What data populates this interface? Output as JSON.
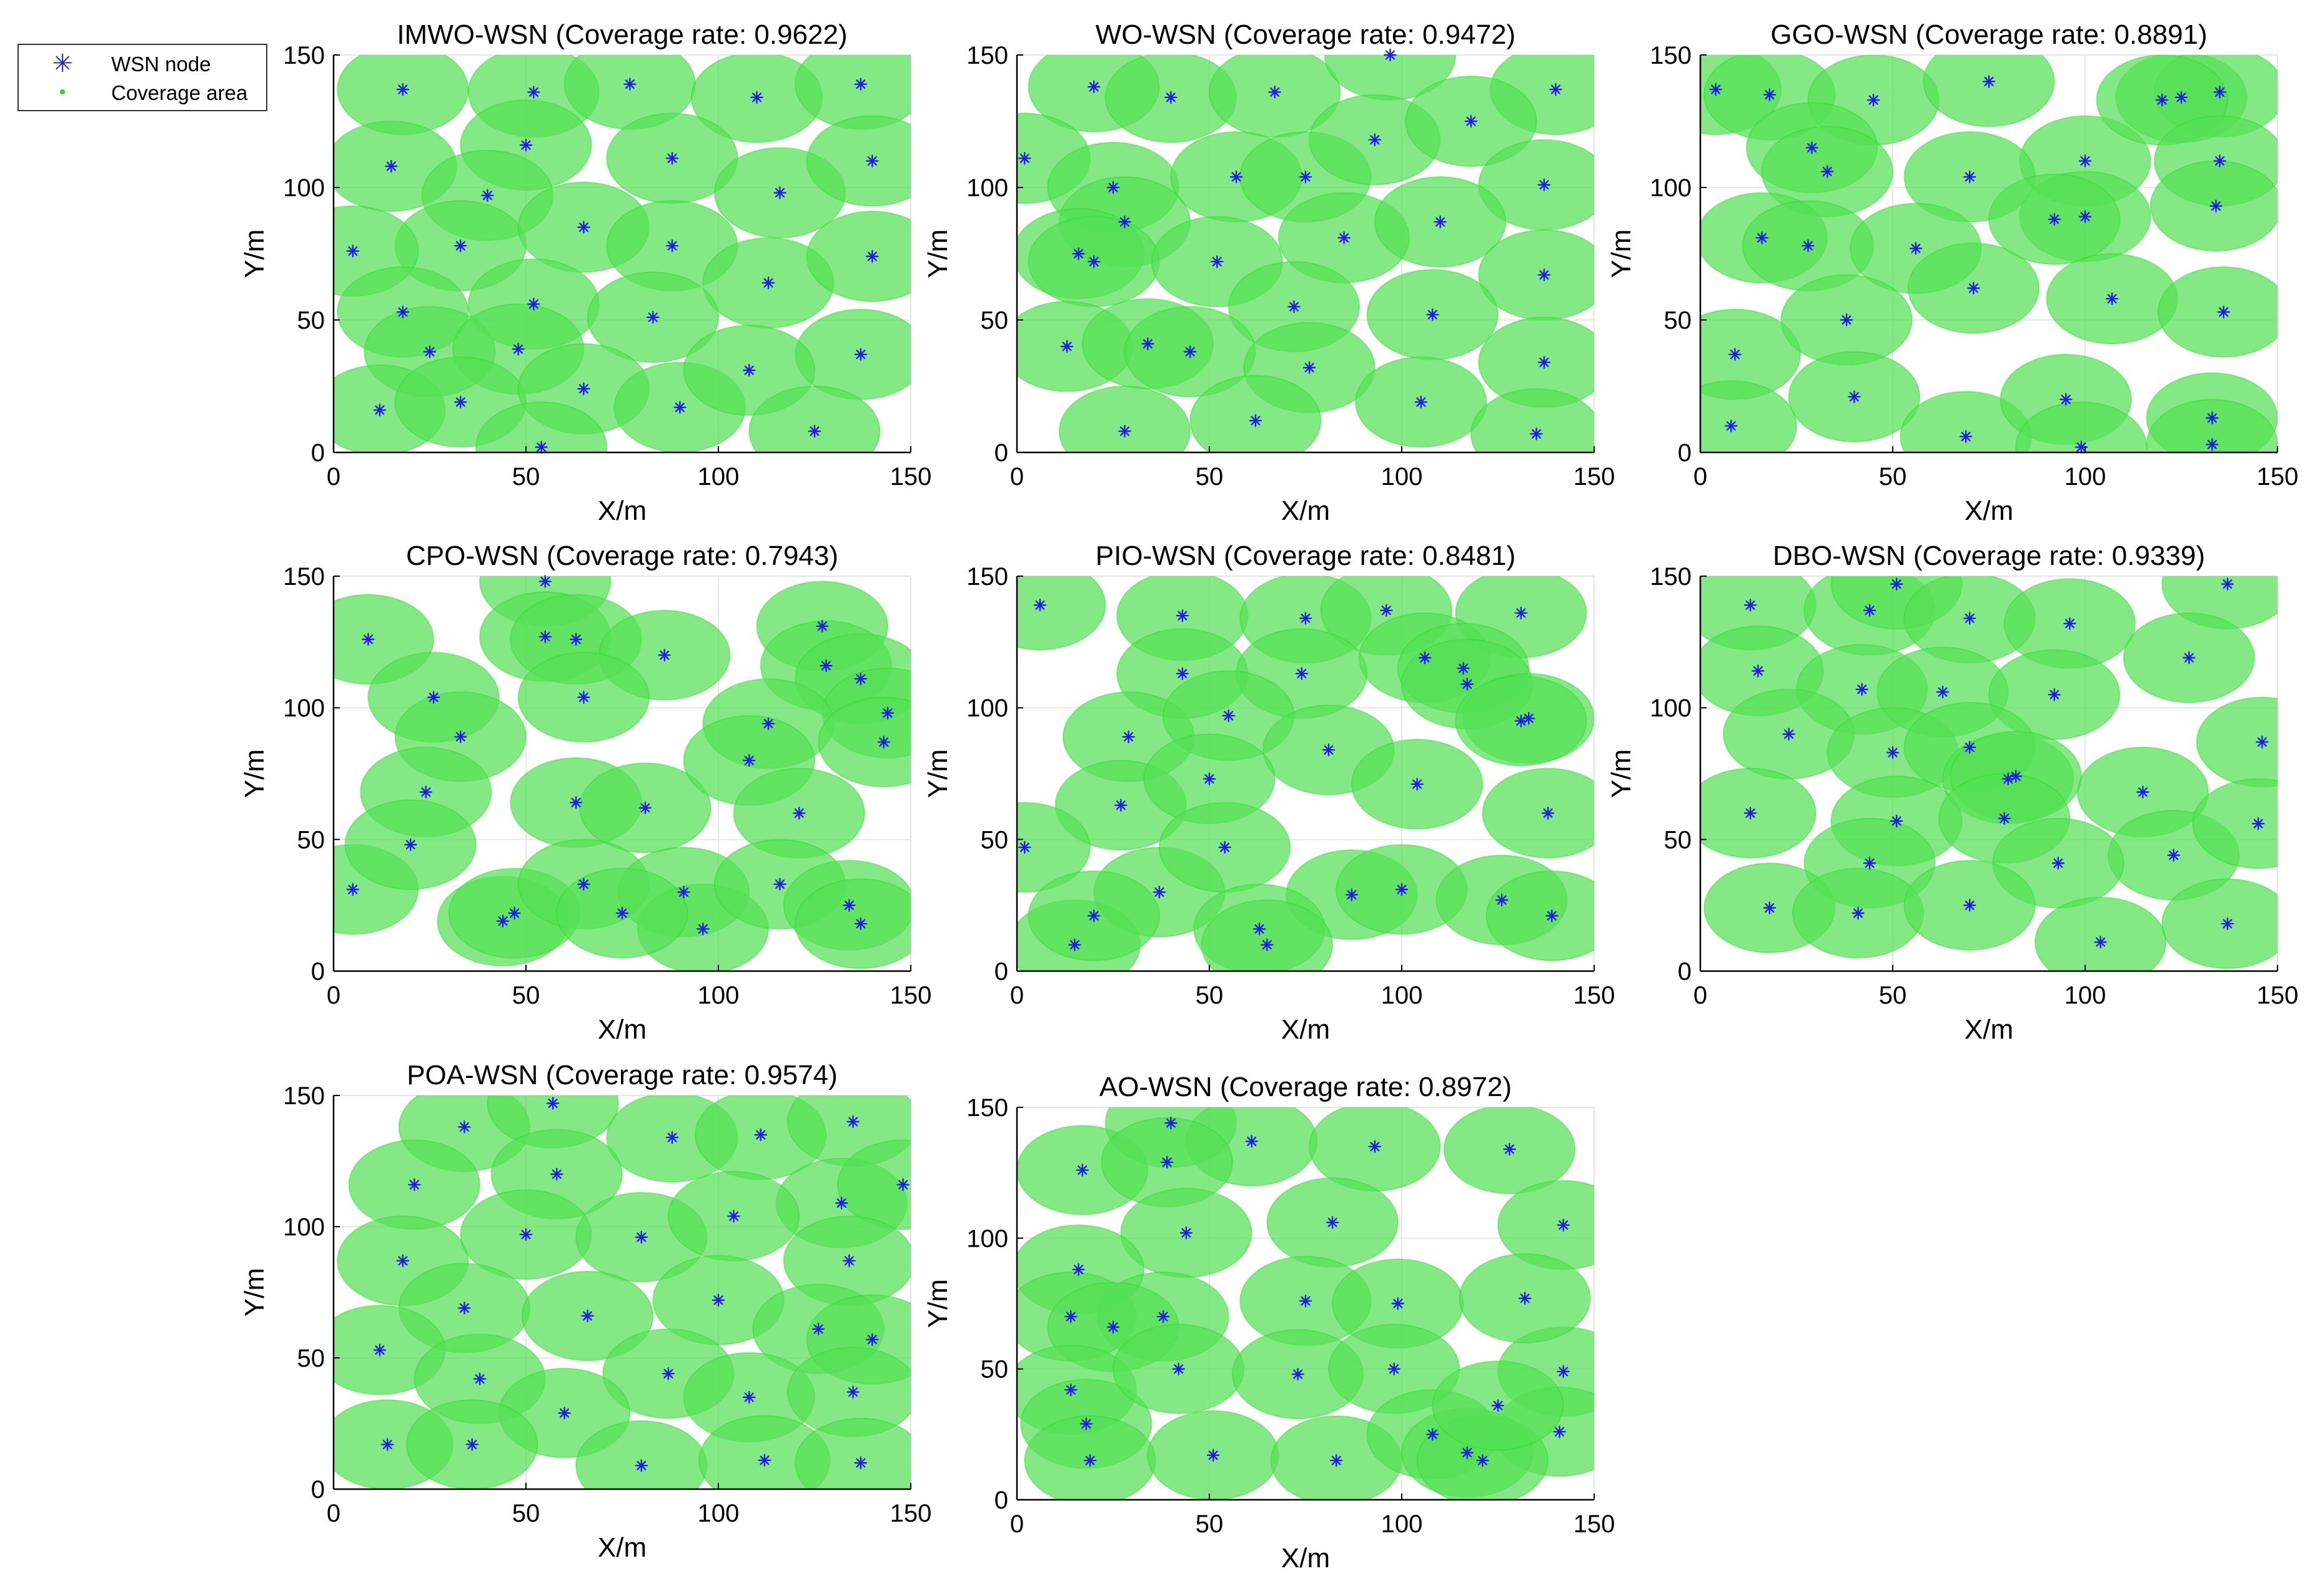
{
  "legend": {
    "node_label": "WSN node",
    "area_label": "Coverage area",
    "node_icon": "asterisk-marker-icon",
    "area_icon": "dot-marker-icon"
  },
  "colors": {
    "node": "#1e1ee6",
    "coverage": "#22dd22",
    "coverage_fill": "#55e055",
    "axis": "#000000",
    "grid": "#e6e6e6"
  },
  "chart_data": [
    {
      "type": "scatter",
      "title": "IMWO-WSN (Coverage rate: 0.9622)",
      "xlabel": "X/m",
      "ylabel": "Y/m",
      "xlim": [
        0,
        150
      ],
      "ylim": [
        0,
        150
      ],
      "xticks": [
        0,
        50,
        100,
        150
      ],
      "yticks": [
        0,
        50,
        100,
        150
      ],
      "grid": true,
      "sensing_radius": 17,
      "x": [
        18,
        52,
        77,
        110,
        137,
        15,
        50,
        40,
        88,
        116,
        140,
        33,
        65,
        88,
        113,
        5,
        18,
        52,
        83,
        140,
        25,
        48,
        137,
        12,
        33,
        65,
        90,
        108,
        125,
        54
      ],
      "y": [
        137,
        136,
        139,
        134,
        139,
        108,
        116,
        97,
        111,
        98,
        110,
        78,
        85,
        78,
        64,
        76,
        53,
        56,
        51,
        74,
        38,
        39,
        37,
        16,
        19,
        24,
        17,
        31,
        8,
        2
      ]
    },
    {
      "type": "scatter",
      "title": "WO-WSN (Coverage rate: 0.9472)",
      "xlabel": "X/m",
      "ylabel": "Y/m",
      "xlim": [
        0,
        150
      ],
      "ylim": [
        0,
        150
      ],
      "xticks": [
        0,
        50,
        100,
        150
      ],
      "yticks": [
        0,
        50,
        100,
        150
      ],
      "grid": true,
      "sensing_radius": 17,
      "x": [
        20,
        40,
        67,
        97,
        140,
        2,
        25,
        57,
        75,
        93,
        118,
        137,
        28,
        16,
        20,
        52,
        85,
        110,
        137,
        72,
        13,
        34,
        45,
        76,
        108,
        137,
        28,
        62,
        105,
        135
      ],
      "y": [
        138,
        134,
        136,
        150,
        137,
        111,
        100,
        104,
        104,
        118,
        125,
        101,
        87,
        75,
        72,
        72,
        81,
        87,
        67,
        55,
        40,
        41,
        38,
        32,
        52,
        34,
        8,
        12,
        19,
        7
      ]
    },
    {
      "type": "scatter",
      "title": "GGO-WSN (Coverage rate: 0.8891)",
      "xlabel": "X/m",
      "ylabel": "Y/m",
      "xlim": [
        0,
        150
      ],
      "ylim": [
        0,
        150
      ],
      "xticks": [
        0,
        50,
        100,
        150
      ],
      "yticks": [
        0,
        50,
        100,
        150
      ],
      "grid": true,
      "sensing_radius": 17,
      "x": [
        4,
        18,
        45,
        75,
        100,
        125,
        135,
        29,
        33,
        70,
        100,
        120,
        135,
        134,
        16,
        28,
        56,
        71,
        92,
        107,
        136,
        9,
        38,
        40,
        69,
        95,
        133,
        8,
        99,
        133
      ],
      "y": [
        137,
        135,
        133,
        140,
        110,
        134,
        136,
        115,
        106,
        104,
        89,
        133,
        110,
        93,
        81,
        78,
        77,
        62,
        88,
        58,
        53,
        37,
        50,
        21,
        6,
        20,
        13,
        10,
        2,
        3
      ]
    },
    {
      "type": "scatter",
      "title": "CPO-WSN (Coverage rate: 0.7943)",
      "xlabel": "X/m",
      "ylabel": "Y/m",
      "xlim": [
        0,
        150
      ],
      "ylim": [
        0,
        150
      ],
      "xticks": [
        0,
        50,
        100,
        150
      ],
      "yticks": [
        0,
        50,
        100,
        150
      ],
      "grid": true,
      "sensing_radius": 17,
      "x": [
        9,
        55,
        55,
        63,
        86,
        127,
        128,
        137,
        144,
        26,
        33,
        65,
        113,
        143,
        24,
        63,
        81,
        108,
        121,
        5,
        20,
        44,
        47,
        65,
        91,
        96,
        116,
        134,
        137,
        75
      ],
      "y": [
        126,
        148,
        127,
        126,
        120,
        131,
        116,
        111,
        98,
        104,
        89,
        104,
        94,
        87,
        68,
        64,
        62,
        80,
        60,
        31,
        48,
        19,
        22,
        33,
        30,
        16,
        33,
        25,
        18,
        22
      ]
    },
    {
      "type": "scatter",
      "title": "PIO-WSN (Coverage rate: 0.8481)",
      "xlabel": "X/m",
      "ylabel": "Y/m",
      "xlim": [
        0,
        150
      ],
      "ylim": [
        0,
        150
      ],
      "xticks": [
        0,
        50,
        100,
        150
      ],
      "yticks": [
        0,
        50,
        100,
        150
      ],
      "grid": true,
      "sensing_radius": 17,
      "x": [
        6,
        43,
        75,
        96,
        131,
        43,
        74,
        106,
        116,
        117,
        133,
        29,
        55,
        81,
        27,
        50,
        104,
        138,
        2,
        37,
        54,
        15,
        20,
        87,
        100,
        126,
        139,
        63,
        65,
        131
      ],
      "y": [
        139,
        135,
        134,
        137,
        136,
        113,
        113,
        119,
        115,
        109,
        96,
        89,
        97,
        84,
        63,
        73,
        71,
        60,
        47,
        30,
        47,
        10,
        21,
        29,
        31,
        27,
        21,
        16,
        10,
        95
      ]
    },
    {
      "type": "scatter",
      "title": "DBO-WSN (Coverage rate: 0.9339)",
      "xlabel": "X/m",
      "ylabel": "Y/m",
      "xlim": [
        0,
        150
      ],
      "ylim": [
        0,
        150
      ],
      "xticks": [
        0,
        50,
        100,
        150
      ],
      "yticks": [
        0,
        50,
        100,
        150
      ],
      "grid": true,
      "sensing_radius": 17,
      "x": [
        13,
        44,
        51,
        70,
        96,
        137,
        15,
        42,
        63,
        92,
        127,
        23,
        50,
        70,
        115,
        146,
        13,
        51,
        80,
        82,
        79,
        123,
        145,
        44,
        93,
        18,
        41,
        70,
        104,
        137
      ],
      "y": [
        139,
        137,
        147,
        134,
        132,
        147,
        114,
        107,
        106,
        105,
        119,
        90,
        83,
        85,
        68,
        87,
        60,
        57,
        73,
        74,
        58,
        44,
        56,
        41,
        41,
        24,
        22,
        25,
        11,
        18
      ]
    },
    {
      "type": "scatter",
      "title": "POA-WSN (Coverage rate: 0.9574)",
      "xlabel": "X/m",
      "ylabel": "Y/m",
      "xlim": [
        0,
        150
      ],
      "ylim": [
        0,
        150
      ],
      "xticks": [
        0,
        50,
        100,
        150
      ],
      "yticks": [
        0,
        50,
        100,
        150
      ],
      "grid": true,
      "sensing_radius": 17,
      "x": [
        34,
        57,
        88,
        111,
        135,
        21,
        58,
        132,
        148,
        18,
        50,
        80,
        104,
        134,
        34,
        66,
        100,
        126,
        140,
        12,
        38,
        87,
        108,
        135,
        60,
        14,
        36,
        80,
        112,
        137
      ],
      "y": [
        138,
        147,
        134,
        135,
        140,
        116,
        120,
        109,
        116,
        87,
        97,
        96,
        104,
        87,
        69,
        66,
        72,
        61,
        57,
        53,
        42,
        44,
        35,
        37,
        29,
        17,
        17,
        9,
        11,
        10
      ]
    },
    {
      "type": "scatter",
      "title": "AO-WSN (Coverage rate: 0.8972)",
      "xlabel": "X/m",
      "ylabel": "Y/m",
      "xlim": [
        0,
        150
      ],
      "ylim": [
        0,
        150
      ],
      "xticks": [
        0,
        50,
        100,
        150
      ],
      "yticks": [
        0,
        50,
        100,
        150
      ],
      "grid": true,
      "sensing_radius": 17,
      "x": [
        17,
        40,
        61,
        93,
        128,
        39,
        44,
        82,
        142,
        16,
        14,
        38,
        25,
        75,
        99,
        142,
        132,
        14,
        18,
        42,
        73,
        98,
        141,
        19,
        51,
        83,
        108,
        117,
        121,
        125
      ],
      "y": [
        126,
        144,
        137,
        135,
        134,
        129,
        102,
        106,
        105,
        88,
        70,
        70,
        66,
        76,
        75,
        49,
        77,
        42,
        29,
        50,
        48,
        50,
        26,
        15,
        17,
        15,
        25,
        18,
        15,
        36
      ]
    }
  ]
}
